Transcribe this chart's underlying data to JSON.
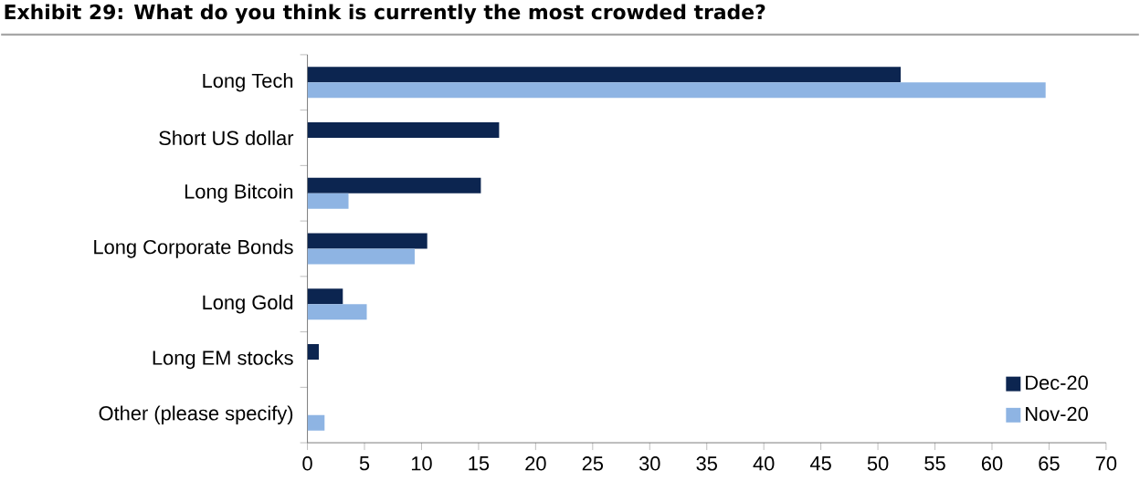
{
  "chart_data": {
    "type": "bar",
    "orientation": "horizontal",
    "title": "Exhibit 29: What do you think is currently the most crowded trade?",
    "categories": [
      "Long Tech",
      "Short US dollar",
      "Long Bitcoin",
      "Long Corporate Bonds",
      "Long Gold",
      "Long EM stocks",
      "Other (please specify)"
    ],
    "series": [
      {
        "name": "Dec-20",
        "color": "#0c2550",
        "values": [
          52.0,
          16.8,
          15.2,
          10.5,
          3.1,
          1.0,
          null
        ]
      },
      {
        "name": "Nov-20",
        "color": "#8eb4e3",
        "values": [
          64.7,
          null,
          3.6,
          9.4,
          5.2,
          null,
          1.5
        ]
      }
    ],
    "xlim": [
      0,
      70
    ],
    "xticks": [
      0,
      5,
      10,
      15,
      20,
      25,
      30,
      35,
      40,
      45,
      50,
      55,
      60,
      65,
      70
    ],
    "grid": false,
    "legend": "bottom right"
  }
}
